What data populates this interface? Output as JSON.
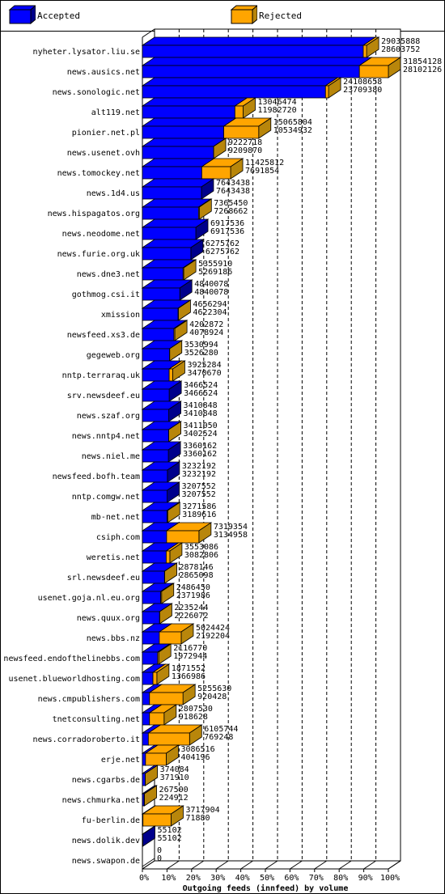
{
  "legend": {
    "accepted_label": "Accepted",
    "rejected_label": "Rejected"
  },
  "colors": {
    "accepted": "#0000ff",
    "accepted_dark": "#00008b",
    "rejected": "#ffa500",
    "rejected_dark": "#b8860b",
    "grid": "#000000",
    "background": "#ffffff"
  },
  "chart_data": {
    "type": "bar",
    "orientation": "horizontal",
    "stacked": true,
    "three_d": true,
    "title": "",
    "xlabel": "Outgoing feeds (innfeed) by volume",
    "ylabel": "",
    "xlim": [
      0,
      100
    ],
    "x_unit": "%",
    "x_ticks": [
      "0%",
      "10%",
      "20%",
      "30%",
      "40%",
      "50%",
      "60%",
      "70%",
      "80%",
      "90%",
      "100%"
    ],
    "grid": true,
    "legend_position": "top",
    "series_names": [
      "Accepted",
      "Rejected"
    ],
    "rows": [
      {
        "name": "nyheter.lysator.liu.se",
        "offered": "29035888",
        "accepted": "28603752"
      },
      {
        "name": "news.ausics.net",
        "offered": "31854128",
        "accepted": "28102126"
      },
      {
        "name": "news.sonologic.net",
        "offered": "24108658",
        "accepted": "23709380"
      },
      {
        "name": "alt119.net",
        "offered": "13046474",
        "accepted": "11982720"
      },
      {
        "name": "pionier.net.pl",
        "offered": "15065804",
        "accepted": "10534932"
      },
      {
        "name": "news.usenet.ovh",
        "offered": "9222718",
        "accepted": "9209870"
      },
      {
        "name": "news.tomockey.net",
        "offered": "11425812",
        "accepted": "7691854"
      },
      {
        "name": "news.1d4.us",
        "offered": "7643438",
        "accepted": "7643438"
      },
      {
        "name": "news.hispagatos.org",
        "offered": "7365450",
        "accepted": "7268662"
      },
      {
        "name": "news.neodome.net",
        "offered": "6917536",
        "accepted": "6917536"
      },
      {
        "name": "news.furie.org.uk",
        "offered": "6275762",
        "accepted": "6275762"
      },
      {
        "name": "news.dne3.net",
        "offered": "5355910",
        "accepted": "5269186"
      },
      {
        "name": "gothmog.csi.it",
        "offered": "4840078",
        "accepted": "4840078"
      },
      {
        "name": "xmission",
        "offered": "4656294",
        "accepted": "4622304"
      },
      {
        "name": "newsfeed.xs3.de",
        "offered": "4202872",
        "accepted": "4078924"
      },
      {
        "name": "gegeweb.org",
        "offered": "3530994",
        "accepted": "3526280"
      },
      {
        "name": "nntp.terraraq.uk",
        "offered": "3925284",
        "accepted": "3470670"
      },
      {
        "name": "srv.newsdeef.eu",
        "offered": "3466524",
        "accepted": "3466524"
      },
      {
        "name": "news.szaf.org",
        "offered": "3410848",
        "accepted": "3410848"
      },
      {
        "name": "news.nntp4.net",
        "offered": "3411050",
        "accepted": "3402524"
      },
      {
        "name": "news.niel.me",
        "offered": "3360162",
        "accepted": "3360162"
      },
      {
        "name": "newsfeed.bofh.team",
        "offered": "3232192",
        "accepted": "3232192"
      },
      {
        "name": "nntp.comgw.net",
        "offered": "3207552",
        "accepted": "3207552"
      },
      {
        "name": "mb-net.net",
        "offered": "3271586",
        "accepted": "3189616"
      },
      {
        "name": "csiph.com",
        "offered": "7319354",
        "accepted": "3134958"
      },
      {
        "name": "weretis.net",
        "offered": "3553086",
        "accepted": "3082806"
      },
      {
        "name": "srl.newsdeef.eu",
        "offered": "2878146",
        "accepted": "2865098"
      },
      {
        "name": "usenet.goja.nl.eu.org",
        "offered": "2486450",
        "accepted": "2371986"
      },
      {
        "name": "news.quux.org",
        "offered": "2235244",
        "accepted": "2226072"
      },
      {
        "name": "news.bbs.nz",
        "offered": "5024424",
        "accepted": "2192204"
      },
      {
        "name": "newsfeed.endofthelinebbs.com",
        "offered": "2116770",
        "accepted": "1972944"
      },
      {
        "name": "usenet.blueworldhosting.com",
        "offered": "1871552",
        "accepted": "1366986"
      },
      {
        "name": "news.cmpublishers.com",
        "offered": "5255630",
        "accepted": "920428"
      },
      {
        "name": "tnetconsulting.net",
        "offered": "2807530",
        "accepted": "918628"
      },
      {
        "name": "news.corradoroberto.it",
        "offered": "6105744",
        "accepted": "769248"
      },
      {
        "name": "erje.net",
        "offered": "3086516",
        "accepted": "404196"
      },
      {
        "name": "news.cgarbs.de",
        "offered": "374084",
        "accepted": "371910"
      },
      {
        "name": "news.chmurka.net",
        "offered": "267500",
        "accepted": "224912"
      },
      {
        "name": "fu-berlin.de",
        "offered": "3717904",
        "accepted": "71880"
      },
      {
        "name": "news.dolik.dev",
        "offered": "55102",
        "accepted": "55102"
      },
      {
        "name": "news.swapon.de",
        "offered": "0",
        "accepted": "0"
      }
    ]
  }
}
